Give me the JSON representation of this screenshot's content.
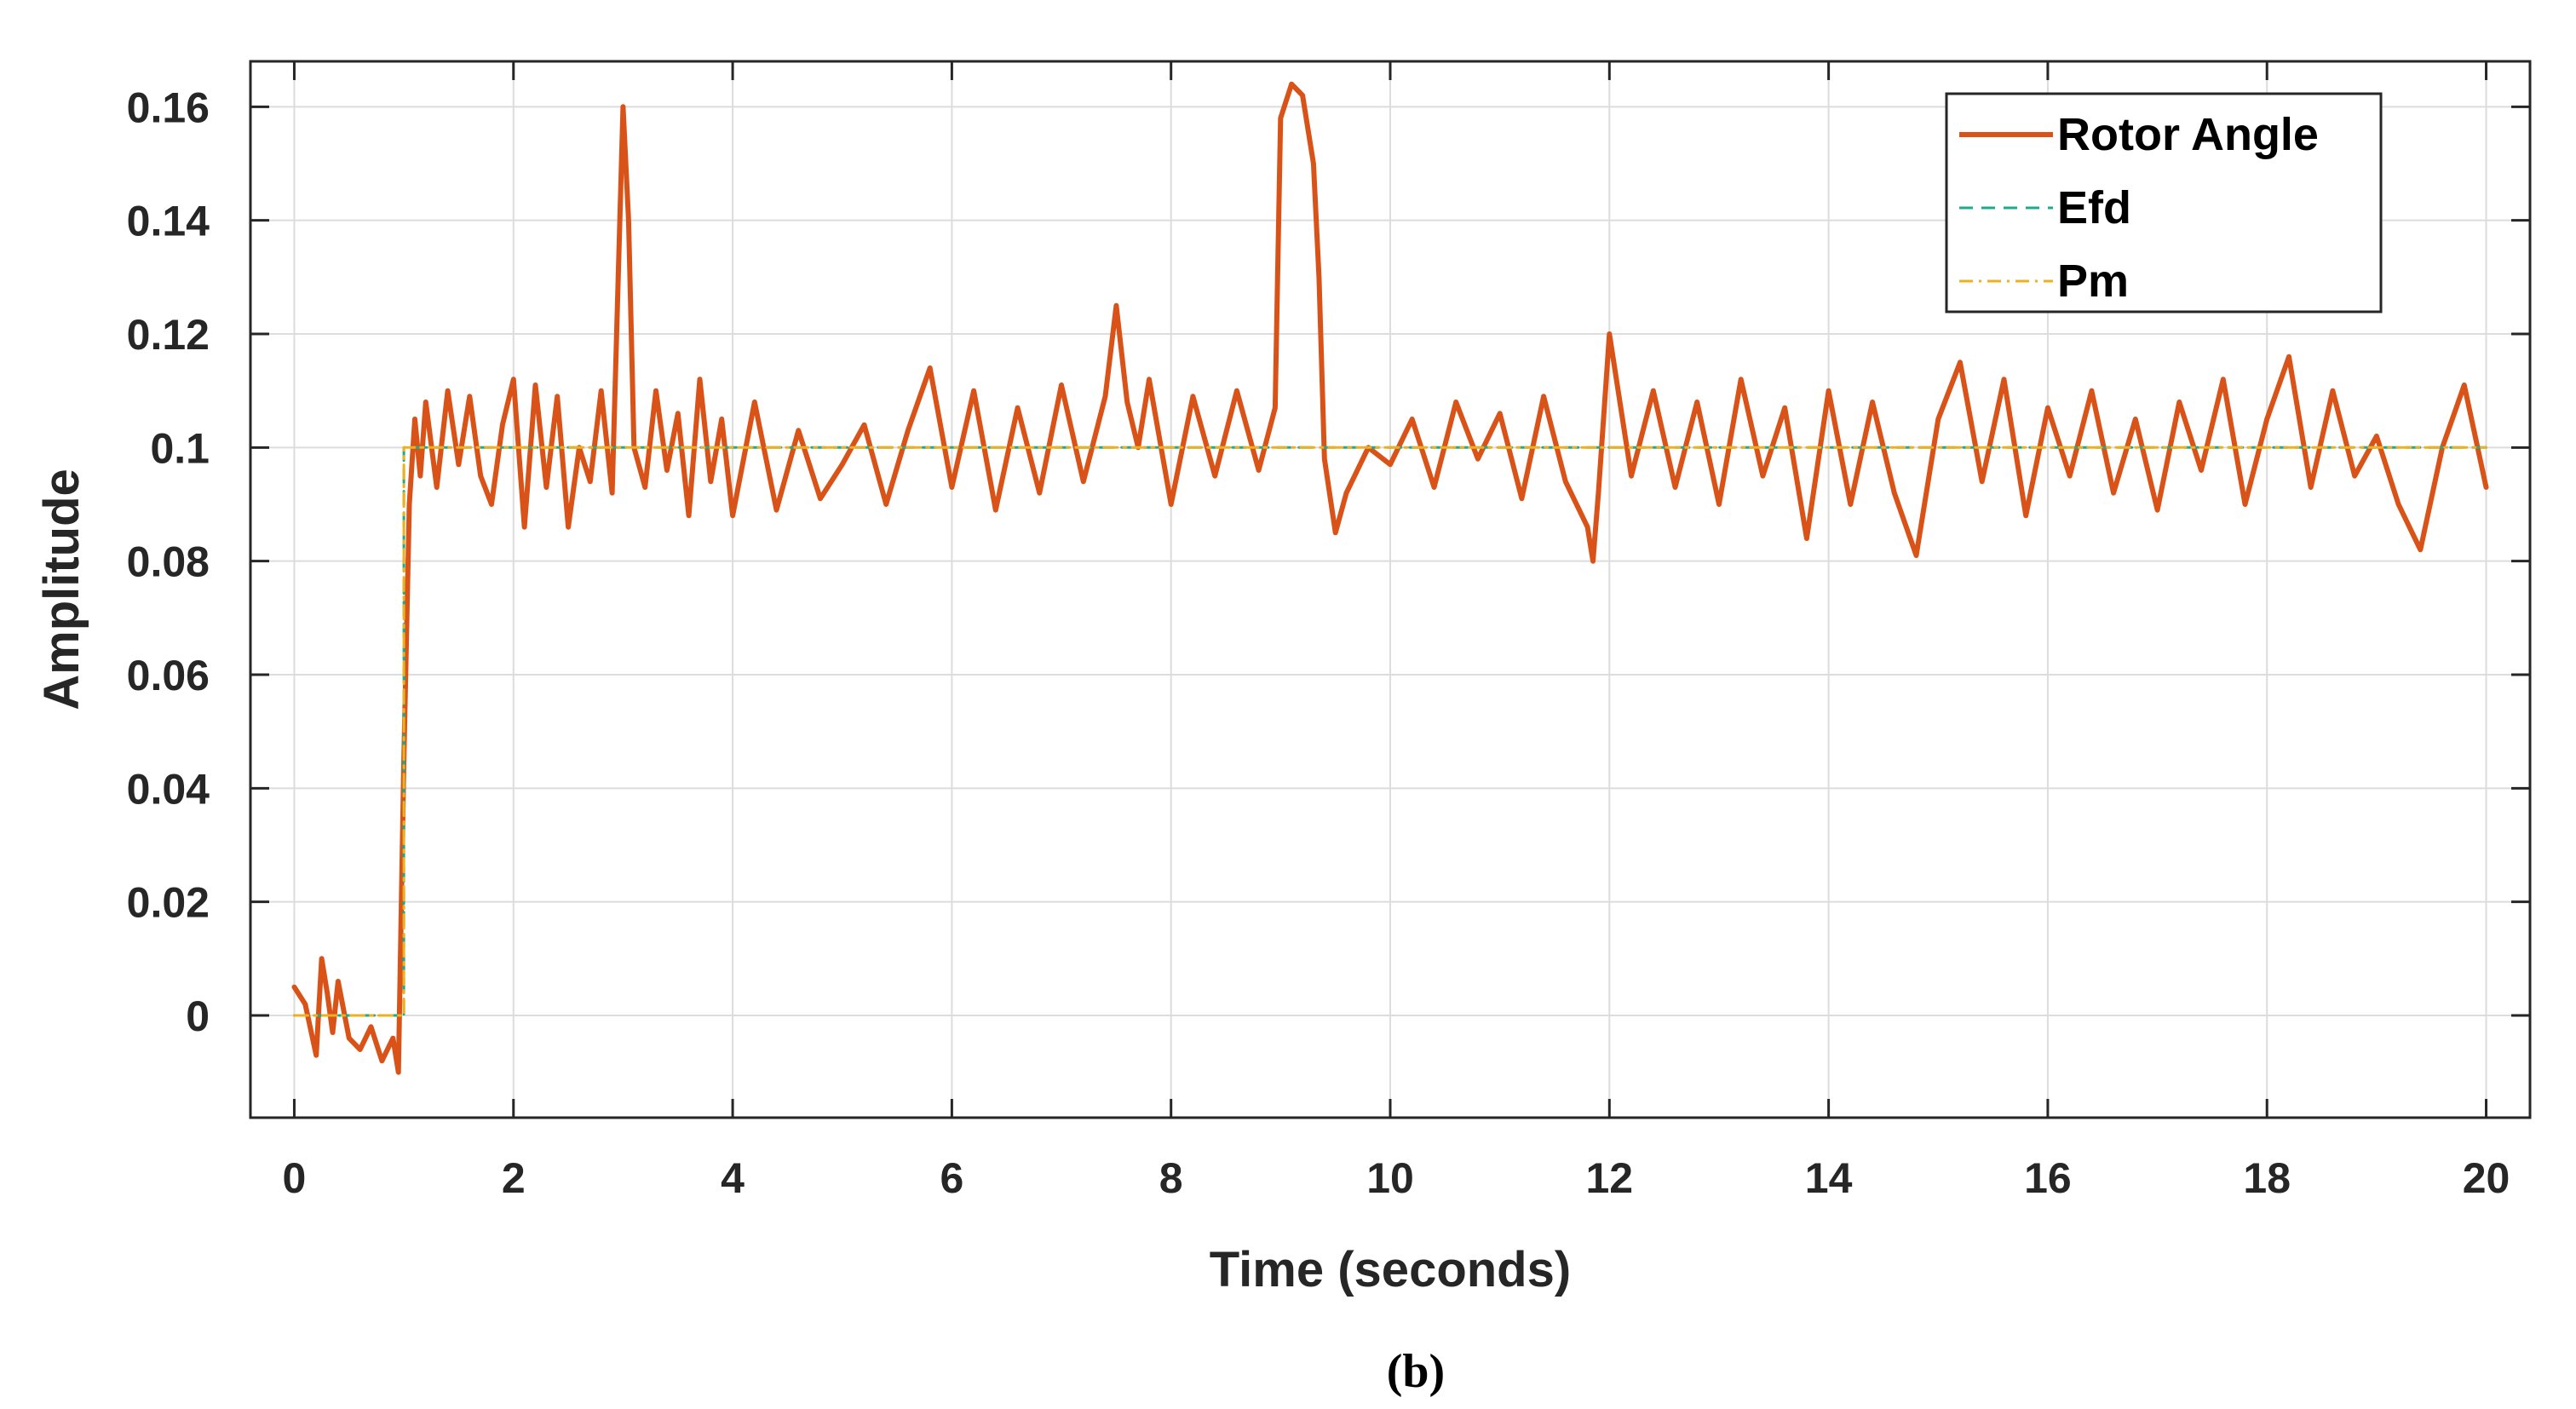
{
  "caption": "(b)",
  "chart_data": {
    "type": "line",
    "xlabel": "Time (seconds)",
    "ylabel": "Amplitude",
    "xlim": [
      -0.4,
      20.4
    ],
    "ylim": [
      -0.018,
      0.168
    ],
    "xticks": [
      0,
      2,
      4,
      6,
      8,
      10,
      12,
      14,
      16,
      18,
      20
    ],
    "xtick_labels": [
      "0",
      "2",
      "4",
      "6",
      "8",
      "10",
      "12",
      "14",
      "16",
      "18",
      "20"
    ],
    "yticks": [
      0,
      0.02,
      0.04,
      0.06,
      0.08,
      0.1,
      0.12,
      0.14,
      0.16
    ],
    "ytick_labels": [
      "0",
      "0.02",
      "0.04",
      "0.06",
      "0.08",
      "0.1",
      "0.12",
      "0.14",
      "0.16"
    ],
    "grid": true,
    "legend_position": "top-right",
    "series": [
      {
        "name": "Rotor Angle",
        "color": "#D95319",
        "style": "solid",
        "x": [
          0,
          0.1,
          0.2,
          0.25,
          0.3,
          0.35,
          0.4,
          0.5,
          0.6,
          0.7,
          0.8,
          0.9,
          0.95,
          1.0,
          1.05,
          1.1,
          1.15,
          1.2,
          1.3,
          1.4,
          1.5,
          1.6,
          1.7,
          1.8,
          1.9,
          2.0,
          2.1,
          2.2,
          2.3,
          2.4,
          2.5,
          2.6,
          2.7,
          2.8,
          2.9,
          3.0,
          3.05,
          3.1,
          3.2,
          3.3,
          3.4,
          3.5,
          3.6,
          3.7,
          3.8,
          3.9,
          4.0,
          4.2,
          4.4,
          4.6,
          4.8,
          5.0,
          5.2,
          5.4,
          5.6,
          5.8,
          6.0,
          6.2,
          6.4,
          6.6,
          6.8,
          7.0,
          7.2,
          7.4,
          7.5,
          7.6,
          7.7,
          7.8,
          8.0,
          8.2,
          8.4,
          8.6,
          8.8,
          8.95,
          9.0,
          9.1,
          9.2,
          9.3,
          9.35,
          9.4,
          9.5,
          9.6,
          9.8,
          10.0,
          10.2,
          10.4,
          10.6,
          10.8,
          11.0,
          11.2,
          11.4,
          11.6,
          11.8,
          11.85,
          11.9,
          12.0,
          12.2,
          12.4,
          12.6,
          12.8,
          13.0,
          13.2,
          13.4,
          13.6,
          13.8,
          14.0,
          14.2,
          14.4,
          14.6,
          14.8,
          15.0,
          15.2,
          15.4,
          15.6,
          15.8,
          16.0,
          16.2,
          16.4,
          16.6,
          16.8,
          17.0,
          17.2,
          17.4,
          17.6,
          17.8,
          18.0,
          18.2,
          18.4,
          18.6,
          18.8,
          19.0,
          19.2,
          19.4,
          19.6,
          19.8,
          20.0
        ],
        "y": [
          0.005,
          0.002,
          -0.007,
          0.01,
          0.004,
          -0.003,
          0.006,
          -0.004,
          -0.006,
          -0.002,
          -0.008,
          -0.004,
          -0.01,
          0.045,
          0.09,
          0.105,
          0.095,
          0.108,
          0.093,
          0.11,
          0.097,
          0.109,
          0.095,
          0.09,
          0.104,
          0.112,
          0.086,
          0.111,
          0.093,
          0.109,
          0.086,
          0.1,
          0.094,
          0.11,
          0.092,
          0.16,
          0.14,
          0.1,
          0.093,
          0.11,
          0.096,
          0.106,
          0.088,
          0.112,
          0.094,
          0.105,
          0.088,
          0.108,
          0.089,
          0.103,
          0.091,
          0.097,
          0.104,
          0.09,
          0.103,
          0.114,
          0.093,
          0.11,
          0.089,
          0.107,
          0.092,
          0.111,
          0.094,
          0.109,
          0.125,
          0.108,
          0.1,
          0.112,
          0.09,
          0.109,
          0.095,
          0.11,
          0.096,
          0.107,
          0.158,
          0.164,
          0.162,
          0.15,
          0.13,
          0.098,
          0.085,
          0.092,
          0.1,
          0.097,
          0.105,
          0.093,
          0.108,
          0.098,
          0.106,
          0.091,
          0.109,
          0.094,
          0.086,
          0.08,
          0.092,
          0.12,
          0.095,
          0.11,
          0.093,
          0.108,
          0.09,
          0.112,
          0.095,
          0.107,
          0.084,
          0.11,
          0.09,
          0.108,
          0.092,
          0.081,
          0.105,
          0.115,
          0.094,
          0.112,
          0.088,
          0.107,
          0.095,
          0.11,
          0.092,
          0.105,
          0.089,
          0.108,
          0.096,
          0.112,
          0.09,
          0.105,
          0.116,
          0.093,
          0.11,
          0.095,
          0.102,
          0.09,
          0.082,
          0.1,
          0.111,
          0.093
        ]
      },
      {
        "name": "Efd",
        "color": "#1FAA8E",
        "style": "dashed",
        "x": [
          0,
          1.0,
          1.0,
          20
        ],
        "y": [
          0,
          0,
          0.1,
          0.1
        ]
      },
      {
        "name": "Pm",
        "color": "#EDB120",
        "style": "dashdot",
        "x": [
          0,
          1.0,
          1.0,
          20
        ],
        "y": [
          0,
          0,
          0.1,
          0.1
        ]
      }
    ]
  }
}
